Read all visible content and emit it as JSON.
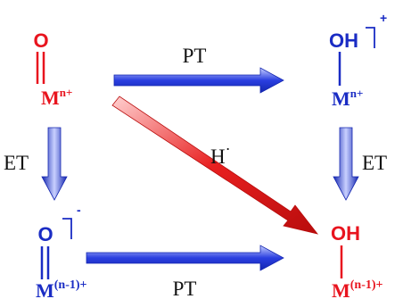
{
  "colors": {
    "red": "#e8141e",
    "blue": "#1a2cc4",
    "arrow_blue": "#2a3fe0",
    "arrow_red": "#e82020"
  },
  "species": {
    "top_left": {
      "ligand": "O",
      "metal": "M",
      "charge": "n+"
    },
    "top_right": {
      "ligand": "OH",
      "metal": "M",
      "charge": "n+",
      "overall_charge": "+"
    },
    "bottom_left": {
      "ligand": "O",
      "metal": "M",
      "charge": "(n-1)+",
      "overall_charge": "-"
    },
    "bottom_right": {
      "ligand": "OH",
      "metal": "M",
      "charge": "(n-1)+"
    }
  },
  "arrows": {
    "top": {
      "label": "PT"
    },
    "bottom": {
      "label": "PT"
    },
    "left": {
      "label": "ET"
    },
    "right": {
      "label": "ET"
    },
    "diagonal": {
      "label": "H",
      "label_sup": "·"
    }
  }
}
